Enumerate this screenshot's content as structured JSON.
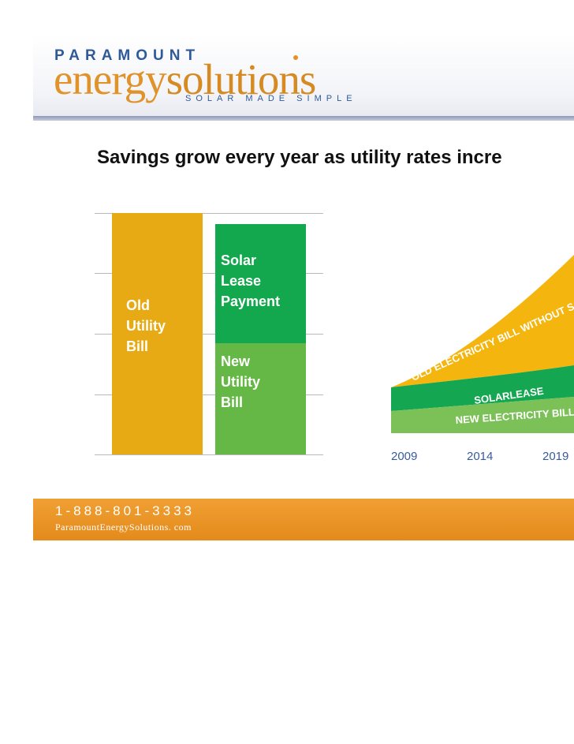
{
  "logo": {
    "top": "PARAMOUNT",
    "energy": "energy",
    "solutions": "solutions",
    "tagline": "SOLAR MADE SIMPLE"
  },
  "slide_title": "Savings grow every year as utility rates incre",
  "comparison": {
    "old_bill_label": "Old\nUtility\nBill",
    "solar_lease_label": "Solar\nLease\nPayment",
    "new_bill_label": "New\nUtility\nBill",
    "colors": {
      "old": "#e8aa14",
      "solar": "#14a84e",
      "new": "#66b846"
    }
  },
  "growth": {
    "old_bill_label": "OLD ELECTRICITY BILL WITHOUT S",
    "solarlease_label": "SOLARLEASE",
    "new_bill_label": "NEW ELECTRICITY BILL",
    "years": [
      "2009",
      "2014",
      "2019"
    ],
    "colors": {
      "old": "#f5b50f",
      "solar": "#15a651",
      "new": "#7cc157"
    }
  },
  "footer": {
    "phone": "1-888-801-3333",
    "website": "ParamountEnergySolutions. com"
  }
}
